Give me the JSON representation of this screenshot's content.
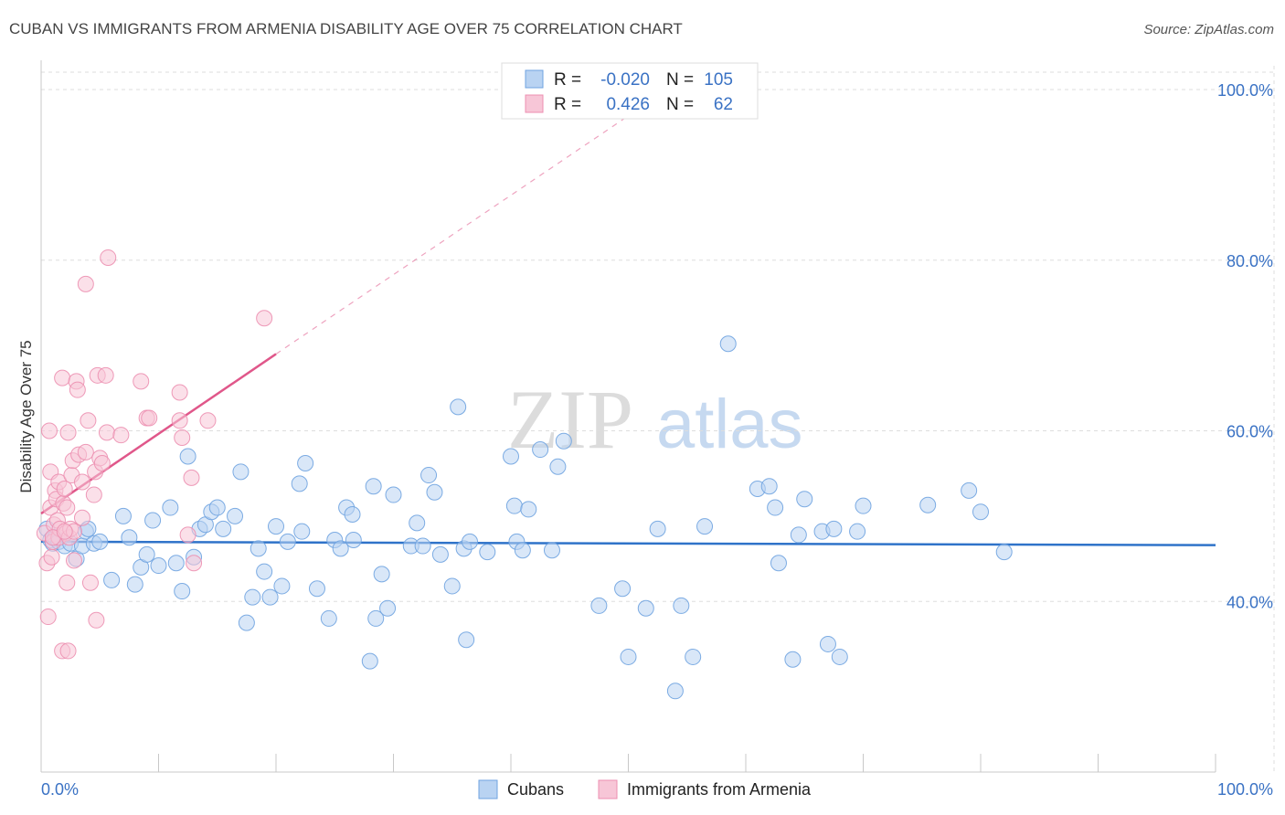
{
  "header": {
    "title": "CUBAN VS IMMIGRANTS FROM ARMENIA DISABILITY AGE OVER 75 CORRELATION CHART",
    "source": "Source: ZipAtlas.com"
  },
  "watermark": {
    "part1": "ZIP",
    "part2": "atlas"
  },
  "colors": {
    "blue": "#6fa3e0",
    "blue_fill": "#b9d3f2",
    "blue_line": "#2f73c9",
    "pink": "#ec8fb0",
    "pink_fill": "#f7c6d7",
    "pink_line": "#e0578a",
    "grid": "#dddddd",
    "axis_label": "#3a72c4"
  },
  "chart_data": {
    "type": "scatter",
    "title": "CUBAN VS IMMIGRANTS FROM ARMENIA DISABILITY AGE OVER 75 CORRELATION CHART",
    "xlabel": "",
    "ylabel": "Disability Age Over 75",
    "xlim": [
      0,
      100
    ],
    "ylim": [
      20,
      103
    ],
    "x_tick_labels": [
      "0.0%",
      "100.0%"
    ],
    "y_ticks": [
      40,
      60,
      80,
      100
    ],
    "y_tick_labels": [
      "40.0%",
      "60.0%",
      "80.0%",
      "100.0%"
    ],
    "grid": true,
    "legend_top": [
      {
        "series": "Cubans",
        "r_label": "R =",
        "r_value": "-0.020",
        "n_label": "N =",
        "n_value": "105"
      },
      {
        "series": "Immigrants from Armenia",
        "r_label": "R =",
        "r_value": "0.426",
        "n_label": "N =",
        "n_value": "62"
      }
    ],
    "series": [
      {
        "name": "Cubans",
        "color": "#6fa3e0",
        "trend": {
          "x0": 0,
          "y0": 47.0,
          "x1": 100,
          "y1": 46.6,
          "dashed_extension": false
        },
        "points": [
          [
            0.5,
            48.5
          ],
          [
            0.8,
            47.2
          ],
          [
            1.0,
            46.8
          ],
          [
            1.2,
            47.5
          ],
          [
            1.5,
            47.0
          ],
          [
            2.0,
            46.5
          ],
          [
            2.5,
            46.8
          ],
          [
            3.0,
            45.0
          ],
          [
            3.5,
            46.5
          ],
          [
            3.8,
            48.2
          ],
          [
            4.0,
            48.5
          ],
          [
            4.5,
            46.8
          ],
          [
            5.0,
            47.0
          ],
          [
            6.0,
            42.5
          ],
          [
            7.0,
            50.0
          ],
          [
            7.5,
            47.5
          ],
          [
            8.0,
            42.0
          ],
          [
            8.5,
            44.0
          ],
          [
            9.0,
            45.5
          ],
          [
            9.5,
            49.5
          ],
          [
            10.0,
            44.2
          ],
          [
            11.0,
            51.0
          ],
          [
            11.5,
            44.5
          ],
          [
            12.0,
            41.2
          ],
          [
            12.5,
            57.0
          ],
          [
            13.0,
            45.2
          ],
          [
            13.5,
            48.5
          ],
          [
            14.0,
            49.0
          ],
          [
            14.5,
            50.5
          ],
          [
            15.0,
            51.0
          ],
          [
            15.5,
            48.5
          ],
          [
            16.5,
            50.0
          ],
          [
            17.0,
            55.2
          ],
          [
            17.5,
            37.5
          ],
          [
            18.0,
            40.5
          ],
          [
            18.5,
            46.2
          ],
          [
            19.0,
            43.5
          ],
          [
            19.5,
            40.5
          ],
          [
            20.0,
            48.8
          ],
          [
            20.5,
            41.8
          ],
          [
            21.0,
            47.0
          ],
          [
            22.0,
            53.8
          ],
          [
            22.2,
            48.2
          ],
          [
            22.5,
            56.2
          ],
          [
            23.5,
            41.5
          ],
          [
            24.5,
            38.0
          ],
          [
            25.0,
            47.2
          ],
          [
            25.5,
            46.2
          ],
          [
            26.0,
            51.0
          ],
          [
            26.5,
            50.2
          ],
          [
            28.0,
            33.0
          ],
          [
            28.3,
            53.5
          ],
          [
            28.5,
            38.0
          ],
          [
            29.0,
            43.2
          ],
          [
            29.5,
            39.2
          ],
          [
            30.0,
            52.5
          ],
          [
            31.5,
            46.5
          ],
          [
            32.0,
            49.2
          ],
          [
            32.5,
            46.5
          ],
          [
            33.0,
            54.8
          ],
          [
            33.5,
            52.8
          ],
          [
            34.0,
            45.5
          ],
          [
            35.0,
            41.8
          ],
          [
            35.5,
            62.8
          ],
          [
            36.0,
            46.2
          ],
          [
            36.2,
            35.5
          ],
          [
            36.5,
            47.0
          ],
          [
            38.0,
            45.8
          ],
          [
            40.0,
            57.0
          ],
          [
            40.3,
            51.2
          ],
          [
            40.5,
            47.0
          ],
          [
            41.0,
            46.0
          ],
          [
            41.5,
            50.8
          ],
          [
            42.5,
            57.8
          ],
          [
            43.5,
            46.0
          ],
          [
            44.0,
            55.8
          ],
          [
            44.5,
            58.8
          ],
          [
            47.5,
            39.5
          ],
          [
            49.5,
            41.5
          ],
          [
            50.0,
            33.5
          ],
          [
            51.5,
            39.2
          ],
          [
            52.5,
            48.5
          ],
          [
            54.0,
            29.5
          ],
          [
            54.5,
            39.5
          ],
          [
            55.5,
            33.5
          ],
          [
            56.5,
            48.8
          ],
          [
            58.5,
            70.2
          ],
          [
            61.0,
            53.2
          ],
          [
            62.0,
            53.5
          ],
          [
            62.5,
            51.0
          ],
          [
            62.8,
            44.5
          ],
          [
            64.0,
            33.2
          ],
          [
            64.5,
            47.8
          ],
          [
            65.0,
            52.0
          ],
          [
            66.5,
            48.2
          ],
          [
            67.0,
            35.0
          ],
          [
            67.5,
            48.5
          ],
          [
            68.0,
            33.5
          ],
          [
            69.5,
            48.2
          ],
          [
            70.0,
            51.2
          ],
          [
            75.5,
            51.3
          ],
          [
            79.0,
            53.0
          ],
          [
            80.0,
            50.5
          ],
          [
            82.0,
            45.8
          ],
          [
            26.6,
            47.2
          ]
        ]
      },
      {
        "name": "Immigrants from Armenia",
        "color": "#ec8fb0",
        "trend": {
          "x0": 0,
          "y0": 50.3,
          "x1": 20,
          "y1": 69.0,
          "dashed_extension": true,
          "dash_x1": 56,
          "dash_y1": 102.5
        },
        "points": [
          [
            0.3,
            48.0
          ],
          [
            0.5,
            44.5
          ],
          [
            0.6,
            38.2
          ],
          [
            0.8,
            55.2
          ],
          [
            0.8,
            51.0
          ],
          [
            0.9,
            45.2
          ],
          [
            1.0,
            47.0
          ],
          [
            1.1,
            49.0
          ],
          [
            1.2,
            53.0
          ],
          [
            1.3,
            52.0
          ],
          [
            1.4,
            49.5
          ],
          [
            1.5,
            54.0
          ],
          [
            1.5,
            47.5
          ],
          [
            1.6,
            48.5
          ],
          [
            1.8,
            66.2
          ],
          [
            1.8,
            34.2
          ],
          [
            1.9,
            51.5
          ],
          [
            2.0,
            53.2
          ],
          [
            2.1,
            48.0
          ],
          [
            2.2,
            51.0
          ],
          [
            2.2,
            42.2
          ],
          [
            2.3,
            34.2
          ],
          [
            2.3,
            59.8
          ],
          [
            2.4,
            47.5
          ],
          [
            2.5,
            48.5
          ],
          [
            2.6,
            54.8
          ],
          [
            2.7,
            56.5
          ],
          [
            2.8,
            48.2
          ],
          [
            2.8,
            44.8
          ],
          [
            3.0,
            65.8
          ],
          [
            3.1,
            64.8
          ],
          [
            3.2,
            57.2
          ],
          [
            3.5,
            49.8
          ],
          [
            3.5,
            54.0
          ],
          [
            3.8,
            57.5
          ],
          [
            3.8,
            77.2
          ],
          [
            4.0,
            61.2
          ],
          [
            4.2,
            42.2
          ],
          [
            4.5,
            52.5
          ],
          [
            4.6,
            55.2
          ],
          [
            4.7,
            37.8
          ],
          [
            4.8,
            66.5
          ],
          [
            5.0,
            56.8
          ],
          [
            5.2,
            56.2
          ],
          [
            5.5,
            66.5
          ],
          [
            5.6,
            59.8
          ],
          [
            5.7,
            80.3
          ],
          [
            6.8,
            59.5
          ],
          [
            8.5,
            65.8
          ],
          [
            9.0,
            61.5
          ],
          [
            9.2,
            61.5
          ],
          [
            11.8,
            64.5
          ],
          [
            11.8,
            61.2
          ],
          [
            12.0,
            59.2
          ],
          [
            12.5,
            47.8
          ],
          [
            12.8,
            54.5
          ],
          [
            13.0,
            44.5
          ],
          [
            14.2,
            61.2
          ],
          [
            19.0,
            73.2
          ],
          [
            0.7,
            60.0
          ],
          [
            1.0,
            47.5
          ],
          [
            2.0,
            48.2
          ]
        ]
      }
    ]
  },
  "legend_bottom": [
    "Cubans",
    "Immigrants from Armenia"
  ]
}
